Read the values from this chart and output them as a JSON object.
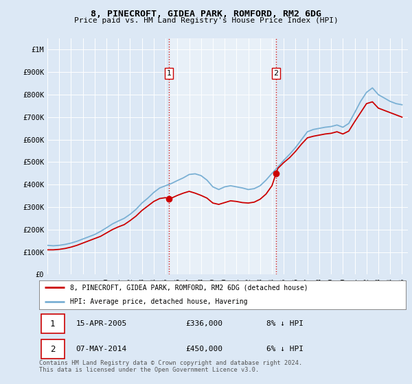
{
  "title": "8, PINECROFT, GIDEA PARK, ROMFORD, RM2 6DG",
  "subtitle": "Price paid vs. HM Land Registry's House Price Index (HPI)",
  "legend_line1": "8, PINECROFT, GIDEA PARK, ROMFORD, RM2 6DG (detached house)",
  "legend_line2": "HPI: Average price, detached house, Havering",
  "transaction1_label": "1",
  "transaction1_date": "15-APR-2005",
  "transaction1_price": "£336,000",
  "transaction1_pct": "8% ↓ HPI",
  "transaction2_label": "2",
  "transaction2_date": "07-MAY-2014",
  "transaction2_price": "£450,000",
  "transaction2_pct": "6% ↓ HPI",
  "footnote": "Contains HM Land Registry data © Crown copyright and database right 2024.\nThis data is licensed under the Open Government Licence v3.0.",
  "line_color_property": "#cc0000",
  "line_color_hpi": "#7ab0d4",
  "vline_color": "#cc0000",
  "dot_color": "#cc0000",
  "background_color": "#dce8f5",
  "plot_bg_color": "#dce8f5",
  "highlight_bg_color": "#e8f2fa",
  "ylim": [
    0,
    1050000
  ],
  "yticks": [
    0,
    100000,
    200000,
    300000,
    400000,
    500000,
    600000,
    700000,
    800000,
    900000,
    1000000
  ],
  "ytick_labels": [
    "£0",
    "£100K",
    "£200K",
    "£300K",
    "£400K",
    "£500K",
    "£600K",
    "£700K",
    "£800K",
    "£900K",
    "£1M"
  ],
  "transaction1_x": 2005.29,
  "transaction1_y": 336000,
  "transaction2_x": 2014.35,
  "transaction2_y": 450000,
  "vline1_x": 2005.29,
  "vline2_x": 2014.35,
  "xmin": 1995.0,
  "xmax": 2025.5,
  "hpi_years": [
    1995.0,
    1995.5,
    1996.0,
    1996.5,
    1997.0,
    1997.5,
    1998.0,
    1998.5,
    1999.0,
    1999.5,
    2000.0,
    2000.5,
    2001.0,
    2001.5,
    2002.0,
    2002.5,
    2003.0,
    2003.5,
    2004.0,
    2004.5,
    2005.0,
    2005.5,
    2006.0,
    2006.5,
    2007.0,
    2007.5,
    2008.0,
    2008.5,
    2009.0,
    2009.5,
    2010.0,
    2010.5,
    2011.0,
    2011.5,
    2012.0,
    2012.5,
    2013.0,
    2013.5,
    2014.0,
    2014.5,
    2015.0,
    2015.5,
    2016.0,
    2016.5,
    2017.0,
    2017.5,
    2018.0,
    2018.5,
    2019.0,
    2019.5,
    2020.0,
    2020.5,
    2021.0,
    2021.5,
    2022.0,
    2022.5,
    2023.0,
    2023.5,
    2024.0,
    2024.5,
    2025.0
  ],
  "hpi_values": [
    130000,
    128000,
    130000,
    134000,
    140000,
    148000,
    158000,
    168000,
    178000,
    192000,
    208000,
    225000,
    238000,
    250000,
    268000,
    290000,
    318000,
    340000,
    365000,
    385000,
    395000,
    405000,
    418000,
    430000,
    445000,
    448000,
    440000,
    420000,
    390000,
    378000,
    390000,
    395000,
    390000,
    385000,
    378000,
    382000,
    395000,
    420000,
    450000,
    478000,
    508000,
    535000,
    565000,
    600000,
    635000,
    645000,
    650000,
    655000,
    658000,
    665000,
    655000,
    672000,
    720000,
    770000,
    810000,
    830000,
    800000,
    785000,
    770000,
    760000,
    755000
  ],
  "prop_years": [
    1995.0,
    1995.5,
    1996.0,
    1996.5,
    1997.0,
    1997.5,
    1998.0,
    1998.5,
    1999.0,
    1999.5,
    2000.0,
    2000.5,
    2001.0,
    2001.5,
    2002.0,
    2002.5,
    2003.0,
    2003.5,
    2004.0,
    2004.5,
    2005.0,
    2005.29,
    2005.5,
    2006.0,
    2006.5,
    2007.0,
    2007.5,
    2008.0,
    2008.5,
    2009.0,
    2009.5,
    2010.0,
    2010.5,
    2011.0,
    2011.5,
    2012.0,
    2012.5,
    2013.0,
    2013.5,
    2014.0,
    2014.35,
    2014.5,
    2015.0,
    2015.5,
    2016.0,
    2016.5,
    2017.0,
    2017.5,
    2018.0,
    2018.5,
    2019.0,
    2019.5,
    2020.0,
    2020.5,
    2021.0,
    2021.5,
    2022.0,
    2022.5,
    2023.0,
    2023.5,
    2024.0,
    2024.5,
    2025.0
  ],
  "prop_values": [
    110000,
    110000,
    112000,
    116000,
    122000,
    130000,
    140000,
    150000,
    160000,
    170000,
    185000,
    200000,
    212000,
    222000,
    240000,
    260000,
    285000,
    305000,
    325000,
    338000,
    342000,
    336000,
    340000,
    352000,
    362000,
    370000,
    362000,
    352000,
    340000,
    318000,
    312000,
    320000,
    328000,
    325000,
    320000,
    318000,
    322000,
    335000,
    358000,
    395000,
    450000,
    472000,
    498000,
    520000,
    548000,
    580000,
    608000,
    615000,
    620000,
    625000,
    628000,
    635000,
    625000,
    638000,
    680000,
    720000,
    760000,
    768000,
    740000,
    730000,
    720000,
    710000,
    700000
  ]
}
